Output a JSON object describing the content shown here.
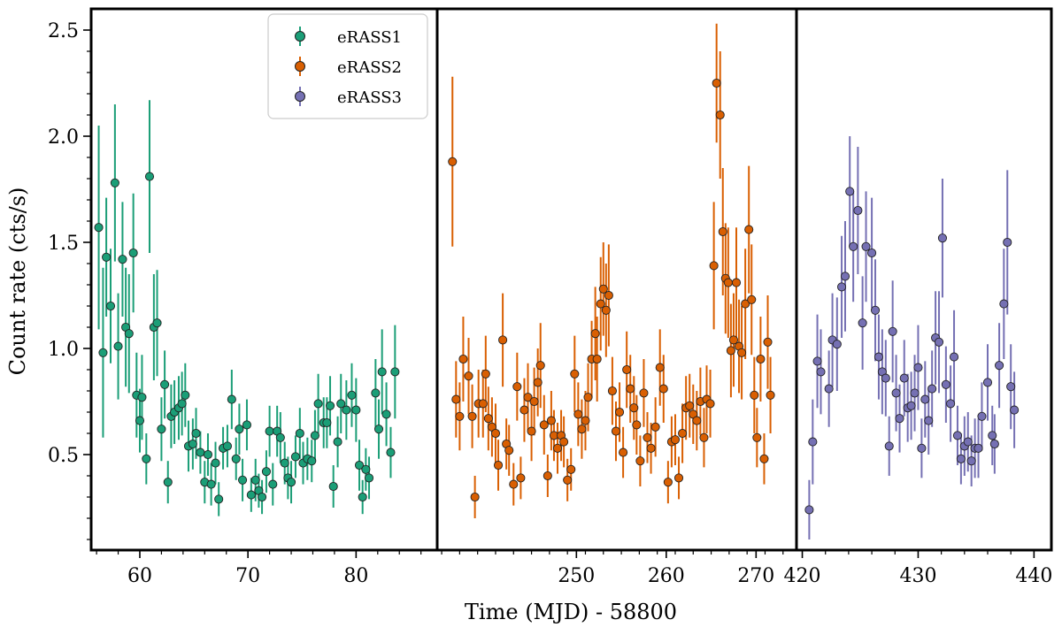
{
  "chart_data": {
    "type": "scatter",
    "xlabel": "Time (MJD) - 58800",
    "ylabel": "Count rate (cts/s)",
    "ylim": [
      0.05,
      2.6
    ],
    "yticks": [
      0.5,
      1.0,
      1.5,
      2.0,
      2.5
    ],
    "ytick_labels": [
      "0.5",
      "1.0",
      "1.5",
      "2.0",
      "2.5"
    ],
    "legend": {
      "placement": "upper",
      "entries": [
        "eRASS1",
        "eRASS2",
        "eRASS3"
      ]
    },
    "colors": {
      "eRASS1": "#1b9e77",
      "eRASS2": "#d95f02",
      "eRASS3": "#7570b3"
    },
    "panels": [
      {
        "xlim": [
          55.5,
          87.5
        ],
        "xticks": [
          60,
          70,
          80
        ],
        "xtick_labels": [
          "60",
          "70",
          "80"
        ]
      },
      {
        "xlim": [
          234.5,
          274.5
        ],
        "xticks": [
          250,
          260,
          270
        ],
        "xtick_labels": [
          "250",
          "260",
          "270"
        ]
      },
      {
        "xlim": [
          419.5,
          441.5
        ],
        "xticks": [
          420,
          430,
          440
        ],
        "xtick_labels": [
          "420",
          "430",
          "440"
        ]
      }
    ],
    "series": [
      {
        "name": "eRASS1",
        "panel": 0,
        "color": "#1b9e77",
        "points": [
          [
            56.2,
            1.57,
            0.48
          ],
          [
            56.6,
            0.98,
            0.4
          ],
          [
            56.9,
            1.43,
            0.28
          ],
          [
            57.3,
            1.2,
            0.27
          ],
          [
            57.7,
            1.78,
            0.37
          ],
          [
            58.0,
            1.01,
            0.25
          ],
          [
            58.4,
            1.42,
            0.27
          ],
          [
            58.7,
            1.1,
            0.28
          ],
          [
            59.0,
            1.07,
            0.28
          ],
          [
            59.4,
            1.45,
            0.28
          ],
          [
            59.7,
            0.78,
            0.2
          ],
          [
            60.0,
            0.66,
            0.15
          ],
          [
            60.2,
            0.77,
            0.2
          ],
          [
            60.6,
            0.48,
            0.12
          ],
          [
            60.9,
            1.81,
            0.36
          ],
          [
            61.3,
            1.1,
            0.25
          ],
          [
            61.6,
            1.12,
            0.25
          ],
          [
            62.0,
            0.62,
            0.15
          ],
          [
            62.3,
            0.83,
            0.16
          ],
          [
            62.6,
            0.37,
            0.1
          ],
          [
            62.9,
            0.68,
            0.15
          ],
          [
            63.2,
            0.7,
            0.15
          ],
          [
            63.6,
            0.72,
            0.15
          ],
          [
            63.9,
            0.74,
            0.15
          ],
          [
            64.2,
            0.78,
            0.15
          ],
          [
            64.5,
            0.54,
            0.12
          ],
          [
            64.9,
            0.55,
            0.12
          ],
          [
            65.2,
            0.6,
            0.12
          ],
          [
            65.6,
            0.51,
            0.1
          ],
          [
            66.0,
            0.37,
            0.1
          ],
          [
            66.3,
            0.5,
            0.1
          ],
          [
            66.6,
            0.36,
            0.1
          ],
          [
            67.0,
            0.46,
            0.1
          ],
          [
            67.3,
            0.29,
            0.08
          ],
          [
            67.7,
            0.53,
            0.1
          ],
          [
            68.1,
            0.54,
            0.1
          ],
          [
            68.5,
            0.76,
            0.14
          ],
          [
            68.9,
            0.48,
            0.1
          ],
          [
            69.2,
            0.62,
            0.12
          ],
          [
            69.5,
            0.38,
            0.1
          ],
          [
            69.9,
            0.64,
            0.12
          ],
          [
            70.3,
            0.31,
            0.08
          ],
          [
            70.7,
            0.38,
            0.1
          ],
          [
            71.0,
            0.33,
            0.08
          ],
          [
            71.3,
            0.3,
            0.08
          ],
          [
            71.7,
            0.42,
            0.1
          ],
          [
            72.0,
            0.61,
            0.12
          ],
          [
            72.3,
            0.36,
            0.1
          ],
          [
            72.7,
            0.61,
            0.12
          ],
          [
            73.0,
            0.58,
            0.12
          ],
          [
            73.4,
            0.46,
            0.1
          ],
          [
            73.7,
            0.39,
            0.1
          ],
          [
            74.0,
            0.37,
            0.1
          ],
          [
            74.4,
            0.49,
            0.1
          ],
          [
            74.8,
            0.6,
            0.12
          ],
          [
            75.1,
            0.46,
            0.1
          ],
          [
            75.5,
            0.48,
            0.1
          ],
          [
            75.9,
            0.47,
            0.1
          ],
          [
            76.2,
            0.59,
            0.12
          ],
          [
            76.5,
            0.74,
            0.14
          ],
          [
            77.0,
            0.65,
            0.12
          ],
          [
            77.3,
            0.65,
            0.12
          ],
          [
            77.6,
            0.73,
            0.14
          ],
          [
            77.9,
            0.35,
            0.1
          ],
          [
            78.3,
            0.56,
            0.12
          ],
          [
            78.6,
            0.74,
            0.14
          ],
          [
            79.1,
            0.71,
            0.14
          ],
          [
            79.6,
            0.78,
            0.15
          ],
          [
            80.0,
            0.71,
            0.15
          ],
          [
            80.3,
            0.45,
            0.12
          ],
          [
            80.6,
            0.3,
            0.08
          ],
          [
            80.9,
            0.43,
            0.1
          ],
          [
            81.2,
            0.39,
            0.1
          ],
          [
            81.8,
            0.79,
            0.16
          ],
          [
            82.1,
            0.62,
            0.14
          ],
          [
            82.4,
            0.89,
            0.2
          ],
          [
            82.8,
            0.69,
            0.15
          ],
          [
            83.2,
            0.51,
            0.12
          ],
          [
            83.6,
            0.89,
            0.22
          ]
        ]
      },
      {
        "name": "eRASS2",
        "panel": 1,
        "color": "#d95f02",
        "points": [
          [
            236.2,
            1.88,
            0.4
          ],
          [
            236.6,
            0.76,
            0.18
          ],
          [
            237.0,
            0.68,
            0.16
          ],
          [
            237.4,
            0.95,
            0.2
          ],
          [
            238.0,
            0.87,
            0.18
          ],
          [
            238.4,
            0.68,
            0.15
          ],
          [
            238.7,
            0.3,
            0.1
          ],
          [
            239.1,
            0.74,
            0.16
          ],
          [
            239.6,
            0.74,
            0.16
          ],
          [
            239.9,
            0.88,
            0.18
          ],
          [
            240.2,
            0.67,
            0.15
          ],
          [
            240.6,
            0.63,
            0.14
          ],
          [
            241.0,
            0.6,
            0.14
          ],
          [
            241.3,
            0.45,
            0.12
          ],
          [
            241.8,
            1.04,
            0.22
          ],
          [
            242.2,
            0.55,
            0.12
          ],
          [
            242.5,
            0.52,
            0.12
          ],
          [
            243.0,
            0.36,
            0.1
          ],
          [
            243.4,
            0.82,
            0.16
          ],
          [
            243.8,
            0.39,
            0.1
          ],
          [
            244.2,
            0.71,
            0.15
          ],
          [
            244.6,
            0.77,
            0.16
          ],
          [
            245.0,
            0.61,
            0.14
          ],
          [
            245.3,
            0.75,
            0.16
          ],
          [
            245.7,
            0.84,
            0.16
          ],
          [
            246.0,
            0.92,
            0.2
          ],
          [
            246.4,
            0.64,
            0.14
          ],
          [
            246.8,
            0.4,
            0.1
          ],
          [
            247.2,
            0.66,
            0.14
          ],
          [
            247.5,
            0.59,
            0.12
          ],
          [
            247.9,
            0.53,
            0.12
          ],
          [
            248.3,
            0.59,
            0.12
          ],
          [
            248.6,
            0.56,
            0.12
          ],
          [
            249.0,
            0.38,
            0.1
          ],
          [
            249.4,
            0.43,
            0.1
          ],
          [
            249.8,
            0.88,
            0.18
          ],
          [
            250.2,
            0.69,
            0.15
          ],
          [
            250.6,
            0.62,
            0.14
          ],
          [
            251.0,
            0.66,
            0.14
          ],
          [
            251.3,
            0.77,
            0.16
          ],
          [
            251.7,
            0.95,
            0.18
          ],
          [
            252.1,
            1.07,
            0.22
          ],
          [
            252.3,
            0.95,
            0.2
          ],
          [
            252.7,
            1.21,
            0.22
          ],
          [
            253.0,
            1.28,
            0.22
          ],
          [
            253.3,
            1.18,
            0.22
          ],
          [
            253.6,
            1.25,
            0.24
          ],
          [
            254.0,
            0.8,
            0.16
          ],
          [
            254.4,
            0.61,
            0.14
          ],
          [
            254.8,
            0.7,
            0.14
          ],
          [
            255.2,
            0.51,
            0.12
          ],
          [
            255.6,
            0.9,
            0.18
          ],
          [
            256.0,
            0.81,
            0.16
          ],
          [
            256.4,
            0.72,
            0.15
          ],
          [
            256.7,
            0.64,
            0.14
          ],
          [
            257.1,
            0.47,
            0.12
          ],
          [
            257.5,
            0.79,
            0.16
          ],
          [
            257.9,
            0.58,
            0.12
          ],
          [
            258.3,
            0.53,
            0.12
          ],
          [
            258.8,
            0.63,
            0.14
          ],
          [
            259.3,
            0.91,
            0.18
          ],
          [
            259.7,
            0.81,
            0.16
          ],
          [
            260.2,
            0.37,
            0.1
          ],
          [
            260.6,
            0.56,
            0.12
          ],
          [
            261.0,
            0.57,
            0.12
          ],
          [
            261.4,
            0.39,
            0.1
          ],
          [
            261.8,
            0.6,
            0.14
          ],
          [
            262.2,
            0.72,
            0.15
          ],
          [
            262.6,
            0.73,
            0.15
          ],
          [
            263.0,
            0.69,
            0.14
          ],
          [
            263.4,
            0.66,
            0.14
          ],
          [
            263.8,
            0.75,
            0.16
          ],
          [
            264.2,
            0.58,
            0.14
          ],
          [
            264.5,
            0.76,
            0.16
          ],
          [
            264.9,
            0.74,
            0.16
          ],
          [
            265.3,
            1.39,
            0.3
          ],
          [
            265.6,
            2.25,
            0.28
          ],
          [
            266.0,
            2.1,
            0.3
          ],
          [
            266.3,
            1.55,
            0.3
          ],
          [
            266.6,
            1.33,
            0.26
          ],
          [
            266.9,
            1.31,
            0.26
          ],
          [
            267.2,
            0.99,
            0.22
          ],
          [
            267.5,
            1.04,
            0.22
          ],
          [
            267.8,
            1.31,
            0.26
          ],
          [
            268.1,
            1.01,
            0.22
          ],
          [
            268.4,
            0.98,
            0.22
          ],
          [
            268.8,
            1.21,
            0.26
          ],
          [
            269.2,
            1.56,
            0.3
          ],
          [
            269.5,
            1.23,
            0.26
          ],
          [
            269.8,
            0.78,
            0.18
          ],
          [
            270.1,
            0.58,
            0.14
          ],
          [
            270.5,
            0.95,
            0.2
          ],
          [
            270.9,
            0.48,
            0.12
          ],
          [
            271.3,
            1.03,
            0.22
          ],
          [
            271.6,
            0.78,
            0.18
          ]
        ]
      },
      {
        "name": "eRASS3",
        "panel": 2,
        "color": "#7570b3",
        "points": [
          [
            420.6,
            0.24,
            0.14
          ],
          [
            420.9,
            0.56,
            0.2
          ],
          [
            421.3,
            0.94,
            0.22
          ],
          [
            421.6,
            0.89,
            0.2
          ],
          [
            422.3,
            0.81,
            0.18
          ],
          [
            422.6,
            1.04,
            0.22
          ],
          [
            423.0,
            1.02,
            0.22
          ],
          [
            423.4,
            1.29,
            0.24
          ],
          [
            423.7,
            1.34,
            0.26
          ],
          [
            424.1,
            1.74,
            0.26
          ],
          [
            424.4,
            1.48,
            0.26
          ],
          [
            424.8,
            1.65,
            0.3
          ],
          [
            425.2,
            1.12,
            0.22
          ],
          [
            425.5,
            1.48,
            0.26
          ],
          [
            426.0,
            1.45,
            0.26
          ],
          [
            426.3,
            1.18,
            0.24
          ],
          [
            426.6,
            0.96,
            0.2
          ],
          [
            426.9,
            0.89,
            0.2
          ],
          [
            427.2,
            0.86,
            0.18
          ],
          [
            427.5,
            0.54,
            0.14
          ],
          [
            427.8,
            1.08,
            0.24
          ],
          [
            428.1,
            0.79,
            0.18
          ],
          [
            428.4,
            0.67,
            0.16
          ],
          [
            428.8,
            0.86,
            0.18
          ],
          [
            429.1,
            0.72,
            0.16
          ],
          [
            429.4,
            0.73,
            0.16
          ],
          [
            429.7,
            0.79,
            0.18
          ],
          [
            430.0,
            0.91,
            0.2
          ],
          [
            430.3,
            0.53,
            0.14
          ],
          [
            430.6,
            0.76,
            0.18
          ],
          [
            430.9,
            0.66,
            0.16
          ],
          [
            431.2,
            0.81,
            0.18
          ],
          [
            431.5,
            1.05,
            0.22
          ],
          [
            431.8,
            1.03,
            0.24
          ],
          [
            432.1,
            1.52,
            0.28
          ],
          [
            432.4,
            0.83,
            0.18
          ],
          [
            432.8,
            0.74,
            0.18
          ],
          [
            433.1,
            0.96,
            0.22
          ],
          [
            433.4,
            0.59,
            0.14
          ],
          [
            433.7,
            0.48,
            0.12
          ],
          [
            434.0,
            0.54,
            0.14
          ],
          [
            434.3,
            0.56,
            0.14
          ],
          [
            434.6,
            0.47,
            0.12
          ],
          [
            434.9,
            0.53,
            0.14
          ],
          [
            435.2,
            0.53,
            0.14
          ],
          [
            435.5,
            0.68,
            0.16
          ],
          [
            436.0,
            0.84,
            0.18
          ],
          [
            436.4,
            0.59,
            0.14
          ],
          [
            436.6,
            0.55,
            0.14
          ],
          [
            437.0,
            0.92,
            0.2
          ],
          [
            437.4,
            1.21,
            0.26
          ],
          [
            437.7,
            1.5,
            0.34
          ],
          [
            438.0,
            0.82,
            0.2
          ],
          [
            438.3,
            0.71,
            0.18
          ]
        ]
      }
    ]
  }
}
